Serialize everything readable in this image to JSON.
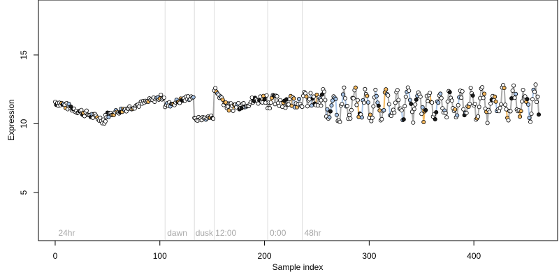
{
  "chart_data": {
    "type": "scatter",
    "title": "",
    "xlabel": "Sample index",
    "ylabel": "Expression",
    "xlim": [
      -16,
      480
    ],
    "ylim": [
      1.5,
      19.0
    ],
    "xticks": [
      0,
      100,
      200,
      300,
      400
    ],
    "yticks": [
      5,
      10,
      15
    ],
    "grid": false,
    "legend": "none",
    "colors": {
      "point_fill_default": "#ffffff",
      "point_fill_orange": "#f5b95f",
      "point_fill_blue": "#a9c6ea",
      "point_fill_dark": "#1a1a1a",
      "point_stroke": "#000000",
      "line_gray": "#aaaaaa",
      "line_orange": "#f5b95f",
      "line_blue": "#a9c6ea",
      "separator": "#dddddd",
      "annotation": "#a8a8a8"
    },
    "separators": [
      105,
      133,
      152,
      203,
      236
    ],
    "annotations": [
      {
        "label": "24hr",
        "x": 3
      },
      {
        "label": "dawn",
        "x": 107
      },
      {
        "label": "dusk",
        "x": 134
      },
      {
        "label": "12:00",
        "x": 153
      },
      {
        "label": "0:00",
        "x": 205
      },
      {
        "label": "48hr",
        "x": 238
      }
    ],
    "segments": [
      {
        "x_start": 0,
        "x_end": 48,
        "y_start": 11.6,
        "y_end": 10.2,
        "noise": 0.25
      },
      {
        "x_start": 48,
        "x_end": 104,
        "y_start": 10.6,
        "y_end": 12.0,
        "noise": 0.2
      },
      {
        "x_start": 105,
        "x_end": 132,
        "y_start": 11.3,
        "y_end": 12.0,
        "noise": 0.2
      },
      {
        "x_start": 133,
        "x_end": 151,
        "y_start": 10.3,
        "y_end": 10.5,
        "noise": 0.15
      },
      {
        "x_start": 152,
        "x_end": 166,
        "y_start": 12.5,
        "y_end": 11.2,
        "noise": 0.3
      },
      {
        "x_start": 166,
        "x_end": 202,
        "y_start": 11.2,
        "y_end": 11.9,
        "noise": 0.35
      },
      {
        "x_start": 203,
        "x_end": 235,
        "y_start": 11.6,
        "y_end": 11.7,
        "noise": 0.5
      },
      {
        "x_start": 236,
        "x_end": 254,
        "y_start": 11.8,
        "y_end": 11.5,
        "noise": 0.6
      },
      {
        "x_start": 254,
        "x_end": 462,
        "y_start": 11.3,
        "y_end": 11.5,
        "noise": 0.5,
        "oscillation": 0.9
      }
    ]
  }
}
